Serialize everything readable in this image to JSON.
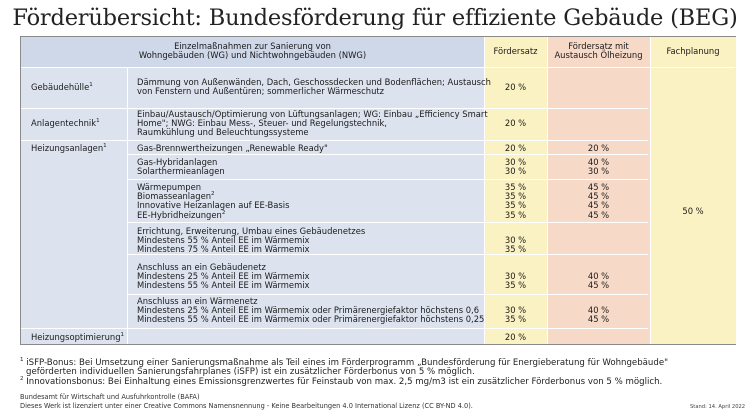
{
  "title": "Förderübersicht: Bundesförderung für effiziente Gebäude (BEG)",
  "header": {
    "measures_line1": "Einzelmaßnahmen zur Sanierung von",
    "measures_line2": "Wohngebäuden (WG) und Nichtwohngebäuden (NWG)",
    "foerdersatz": "Fördersatz",
    "oel_line1": "Fördersatz mit",
    "oel_line2": "Austausch Ölheizung",
    "fachplanung": "Fachplanung"
  },
  "rows": {
    "gebaeudehuelle": {
      "category": "Gebäudehülle",
      "sup": "1",
      "line1": "Dämmung von Außenwänden, Dach, Geschossdecken und Bodenflächen; Austausch",
      "line2": "von Fenstern und Außentüren; sommerlicher Wärmeschutz",
      "rate": "20 %"
    },
    "anlagentechnik": {
      "category": "Anlagentechnik",
      "sup": "1",
      "line1": "Einbau/Austausch/Optimierung von Lüftungsanlagen; WG: Einbau „Efficiency Smart",
      "line2": "Home\"; NWG: Einbau Mess-, Steuer- und Regelungstechnik,",
      "line3": "Raumkühlung und Beleuchtungssysteme",
      "rate": "20 %"
    },
    "heizung": {
      "category": "Heizungsanlagen",
      "sup": "1",
      "renewable_ready": "Gas-Brennwertheizungen „Renewable Ready\"",
      "renewable_rate": "20 %",
      "renewable_oel": "20 %",
      "hybrid": "Gas-Hybridanlagen",
      "hybrid_rate": "30 %",
      "hybrid_oel": "40 %",
      "solar": "Solarthermieanlagen",
      "solar_rate": "30 %",
      "solar_oel": "30 %",
      "wp": "Wärmepumpen",
      "wp_rate": "35 %",
      "wp_oel": "45 %",
      "biomasse": "Biomasseanlagen",
      "biomasse_sup": "2",
      "biomasse_rate": "35 %",
      "biomasse_oel": "45 %",
      "innovativ": "Innovative Heizanlagen auf EE-Basis",
      "innovativ_rate": "35 %",
      "innovativ_oel": "45 %",
      "ee_hybrid": "EE-Hybridheizungen",
      "ee_hybrid_sup": "2",
      "ee_hybrid_rate": "35 %",
      "ee_hybrid_oel": "45 %",
      "netz_title": "Errichtung, Erweiterung, Umbau eines Gebäudenetzes",
      "netz_55": "Mindestens 55 % Anteil EE im Wärmemix",
      "netz_55_rate": "30 %",
      "netz_75": "Mindestens 75 % Anteil EE im Wärmemix",
      "netz_75_rate": "35 %",
      "anschluss_geb_title": "Anschluss an ein Gebäudenetz",
      "anschluss_geb_25": "Mindestens 25 % Anteil EE im Wärmemix",
      "anschluss_geb_25_rate": "30 %",
      "anschluss_geb_25_oel": "40 %",
      "anschluss_geb_55": "Mindestens 55 % Anteil EE im Wärmemix",
      "anschluss_geb_55_rate": "35 %",
      "anschluss_geb_55_oel": "45 %",
      "anschluss_waerme_title": "Anschluss an ein Wärmenetz",
      "anschluss_waerme_25": "Mindestens 25 % Anteil EE im Wärmemix oder Primärenergiefaktor höchstens 0,6",
      "anschluss_waerme_25_rate": "30 %",
      "anschluss_waerme_25_oel": "40 %",
      "anschluss_waerme_55": "Mindestens 55 % Anteil EE im Wärmemix oder Primärenergiefaktor höchstens 0,25",
      "anschluss_waerme_55_rate": "35 %",
      "anschluss_waerme_55_oel": "45 %"
    },
    "optimierung": {
      "category": "Heizungsoptimierung",
      "sup": "1",
      "rate": "20 %"
    },
    "fachplanung_rate": "50 %"
  },
  "footnotes": {
    "n1_sup": "1",
    "n1_line1": "iSFP-Bonus: Bei Umsetzung einer Sanierungsmaßnahme als Teil eines im Förderprogramm „Bundesförderung für Energieberatung für Wohngebäude\"",
    "n1_line2": "geförderten individuellen Sanierungsfahrplanes (iSFP) ist ein zusätzlicher Förderbonus von 5 % möglich.",
    "n2_sup": "2",
    "n2_line1": "Innovationsbonus: Bei Einhaltung eines Emissionsgrenzwertes für Feinstaub von max. 2,5 mg/m3 ist ein zusätzlicher Förderbonus von 5 % möglich."
  },
  "publisher": "Bundesamt für Wirtschaft und Ausfuhrkontrolle (BAFA)",
  "license": "Dieses Werk ist lizenziert unter einer Creative Commons Namensnennung - Keine Bearbeitungen 4.0 International Lizenz (CC BY-ND 4.0).",
  "stand": "Stand: 14. April 2022"
}
